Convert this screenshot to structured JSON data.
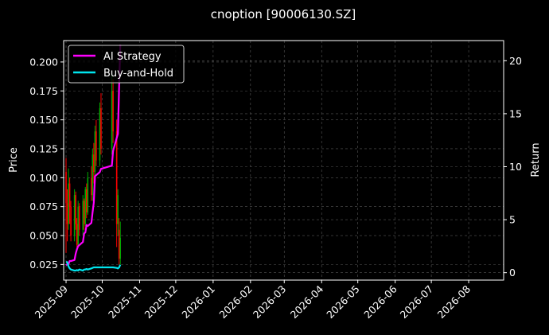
{
  "chart_data": {
    "type": "line",
    "title": "cnoption [90006130.SZ]",
    "ylabel_left": "Price",
    "ylabel_right": "Return",
    "x_range": [
      "2025-08-30",
      "2026-08-30"
    ],
    "x_ticks": [
      "2025-09",
      "2025-10",
      "2025-11",
      "2025-12",
      "2026-01",
      "2026-02",
      "2026-03",
      "2026-04",
      "2026-05",
      "2026-06",
      "2026-07",
      "2026-08"
    ],
    "ylim_left": [
      0.0115,
      0.2185
    ],
    "yticks_left": [
      "0.025",
      "0.050",
      "0.075",
      "0.100",
      "0.125",
      "0.150",
      "0.175",
      "0.200"
    ],
    "ylim_right": [
      -0.7,
      21.9
    ],
    "yticks_right": [
      "0",
      "5",
      "10",
      "15",
      "20"
    ],
    "grid": true,
    "legend_position": "top-left",
    "colors": {
      "ai_strategy": "#ff00ff",
      "buy_and_hold": "#00e5ee",
      "candle_up": "#00aa00",
      "candle_down": "#ff0000",
      "grid": "#555555"
    },
    "candles": [
      {
        "date": "2025-09-01",
        "open": 0.105,
        "close": 0.078,
        "high": 0.117,
        "low": 0.035
      },
      {
        "date": "2025-09-02",
        "open": 0.078,
        "close": 0.06,
        "high": 0.09,
        "low": 0.045
      },
      {
        "date": "2025-09-03",
        "open": 0.06,
        "close": 0.095,
        "high": 0.108,
        "low": 0.055
      },
      {
        "date": "2025-09-04",
        "open": 0.095,
        "close": 0.075,
        "high": 0.1,
        "low": 0.06
      },
      {
        "date": "2025-09-05",
        "open": 0.075,
        "close": 0.05,
        "high": 0.08,
        "low": 0.045
      },
      {
        "date": "2025-09-08",
        "open": 0.05,
        "close": 0.085,
        "high": 0.09,
        "low": 0.045
      },
      {
        "date": "2025-09-09",
        "open": 0.085,
        "close": 0.06,
        "high": 0.088,
        "low": 0.055
      },
      {
        "date": "2025-09-10",
        "open": 0.06,
        "close": 0.042,
        "high": 0.065,
        "low": 0.04
      },
      {
        "date": "2025-09-11",
        "open": 0.042,
        "close": 0.075,
        "high": 0.08,
        "low": 0.04
      },
      {
        "date": "2025-09-12",
        "open": 0.075,
        "close": 0.055,
        "high": 0.078,
        "low": 0.05
      },
      {
        "date": "2025-09-15",
        "open": 0.055,
        "close": 0.08,
        "high": 0.085,
        "low": 0.05
      },
      {
        "date": "2025-09-16",
        "open": 0.08,
        "close": 0.06,
        "high": 0.082,
        "low": 0.055
      },
      {
        "date": "2025-09-17",
        "open": 0.06,
        "close": 0.09,
        "high": 0.092,
        "low": 0.058
      },
      {
        "date": "2025-09-18",
        "open": 0.09,
        "close": 0.07,
        "high": 0.095,
        "low": 0.065
      },
      {
        "date": "2025-09-19",
        "open": 0.07,
        "close": 0.1,
        "high": 0.105,
        "low": 0.068
      },
      {
        "date": "2025-09-22",
        "open": 0.1,
        "close": 0.085,
        "high": 0.11,
        "low": 0.08
      },
      {
        "date": "2025-09-23",
        "open": 0.085,
        "close": 0.12,
        "high": 0.125,
        "low": 0.08
      },
      {
        "date": "2025-09-24",
        "open": 0.12,
        "close": 0.105,
        "high": 0.13,
        "low": 0.095
      },
      {
        "date": "2025-09-25",
        "open": 0.105,
        "close": 0.14,
        "high": 0.145,
        "low": 0.1
      },
      {
        "date": "2025-09-26",
        "open": 0.14,
        "close": 0.115,
        "high": 0.15,
        "low": 0.11
      },
      {
        "date": "2025-09-29",
        "open": 0.115,
        "close": 0.16,
        "high": 0.165,
        "low": 0.11
      },
      {
        "date": "2025-09-30",
        "open": 0.16,
        "close": 0.125,
        "high": 0.173,
        "low": 0.12
      },
      {
        "date": "2025-10-09",
        "open": 0.125,
        "close": 0.175,
        "high": 0.19,
        "low": 0.12
      },
      {
        "date": "2025-10-10",
        "open": 0.175,
        "close": 0.14,
        "high": 0.185,
        "low": 0.13
      },
      {
        "date": "2025-10-13",
        "open": 0.14,
        "close": 0.06,
        "high": 0.15,
        "low": 0.04
      },
      {
        "date": "2025-10-14",
        "open": 0.06,
        "close": 0.085,
        "high": 0.09,
        "low": 0.05
      },
      {
        "date": "2025-10-15",
        "open": 0.055,
        "close": 0.03,
        "high": 0.065,
        "low": 0.025
      },
      {
        "date": "2025-10-16",
        "open": 0.03,
        "close": 0.048,
        "high": 0.062,
        "low": 0.025
      }
    ],
    "series": [
      {
        "name": "AI Strategy",
        "points": [
          {
            "x": "2025-09-01",
            "y": 0.7
          },
          {
            "x": "2025-09-02",
            "y": 0.8
          },
          {
            "x": "2025-09-03",
            "y": 0.8
          },
          {
            "x": "2025-09-04",
            "y": 1.1
          },
          {
            "x": "2025-09-05",
            "y": 1.1
          },
          {
            "x": "2025-09-08",
            "y": 1.2
          },
          {
            "x": "2025-09-09",
            "y": 1.8
          },
          {
            "x": "2025-09-10",
            "y": 2.2
          },
          {
            "x": "2025-09-11",
            "y": 2.5
          },
          {
            "x": "2025-09-12",
            "y": 2.6
          },
          {
            "x": "2025-09-15",
            "y": 2.9
          },
          {
            "x": "2025-09-16",
            "y": 3.7
          },
          {
            "x": "2025-09-17",
            "y": 3.8
          },
          {
            "x": "2025-09-18",
            "y": 4.5
          },
          {
            "x": "2025-09-19",
            "y": 4.4
          },
          {
            "x": "2025-09-22",
            "y": 4.7
          },
          {
            "x": "2025-09-23",
            "y": 5.7
          },
          {
            "x": "2025-09-24",
            "y": 6.6
          },
          {
            "x": "2025-09-25",
            "y": 9.1
          },
          {
            "x": "2025-09-26",
            "y": 9.2
          },
          {
            "x": "2025-09-29",
            "y": 9.5
          },
          {
            "x": "2025-09-30",
            "y": 9.8
          },
          {
            "x": "2025-10-09",
            "y": 10.1
          },
          {
            "x": "2025-10-10",
            "y": 11.5
          },
          {
            "x": "2025-10-13",
            "y": 12.7
          },
          {
            "x": "2025-10-14",
            "y": 13.1
          },
          {
            "x": "2025-10-15",
            "y": 17.5
          },
          {
            "x": "2025-10-16",
            "y": 21.5
          }
        ]
      },
      {
        "name": "Buy-and-Hold",
        "points": [
          {
            "x": "2025-09-01",
            "y": 1.0
          },
          {
            "x": "2025-09-02",
            "y": 1.0
          },
          {
            "x": "2025-09-03",
            "y": 0.6
          },
          {
            "x": "2025-09-04",
            "y": 0.4
          },
          {
            "x": "2025-09-05",
            "y": 0.3
          },
          {
            "x": "2025-09-08",
            "y": 0.2
          },
          {
            "x": "2025-09-09",
            "y": 0.2
          },
          {
            "x": "2025-09-10",
            "y": 0.25
          },
          {
            "x": "2025-09-11",
            "y": 0.2
          },
          {
            "x": "2025-09-12",
            "y": 0.3
          },
          {
            "x": "2025-09-15",
            "y": 0.2
          },
          {
            "x": "2025-09-16",
            "y": 0.3
          },
          {
            "x": "2025-09-17",
            "y": 0.3
          },
          {
            "x": "2025-09-18",
            "y": 0.35
          },
          {
            "x": "2025-09-19",
            "y": 0.3
          },
          {
            "x": "2025-09-22",
            "y": 0.4
          },
          {
            "x": "2025-09-23",
            "y": 0.45
          },
          {
            "x": "2025-09-24",
            "y": 0.5
          },
          {
            "x": "2025-09-25",
            "y": 0.5
          },
          {
            "x": "2025-09-26",
            "y": 0.5
          },
          {
            "x": "2025-09-29",
            "y": 0.5
          },
          {
            "x": "2025-09-30",
            "y": 0.5
          },
          {
            "x": "2025-10-09",
            "y": 0.5
          },
          {
            "x": "2025-10-10",
            "y": 0.5
          },
          {
            "x": "2025-10-13",
            "y": 0.45
          },
          {
            "x": "2025-10-14",
            "y": 0.4
          },
          {
            "x": "2025-10-15",
            "y": 0.5
          },
          {
            "x": "2025-10-16",
            "y": 0.75
          }
        ]
      }
    ]
  }
}
